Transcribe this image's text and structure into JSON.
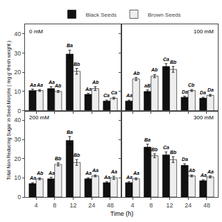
{
  "chart_data": [
    {
      "type": "bar",
      "title": "0 mM",
      "categories": [
        "4",
        "8",
        "12",
        "24",
        "48"
      ],
      "series": [
        {
          "name": "Black Seeds",
          "color": "#111111",
          "values": [
            10.5,
            11.5,
            29.5,
            8.5,
            5.0
          ],
          "errors": [
            0.7,
            1.0,
            2.0,
            0.5,
            0.5
          ],
          "annotations": [
            "Aa",
            "Aa",
            "Ba",
            "Aa",
            "Ca"
          ]
        },
        {
          "name": "Brown Seeds",
          "color": "#eeeeee",
          "values": [
            10.5,
            10.0,
            20.5,
            11.5,
            6.5
          ],
          "errors": [
            0.5,
            0.5,
            1.5,
            1.0,
            0.5
          ],
          "annotations": [
            "Aa",
            "Ab",
            "Bb",
            "Ab",
            "Ca"
          ]
        }
      ],
      "ylim": [
        0,
        45
      ],
      "yticks": [
        0,
        10,
        20,
        30,
        40
      ],
      "grid": false,
      "tick_labels": "y",
      "legend": "top"
    },
    {
      "type": "bar",
      "title": "100 mM",
      "categories": [
        "4",
        "8",
        "12",
        "24",
        "48"
      ],
      "series": [
        {
          "name": "Black Seeds",
          "color": "#111111",
          "values": [
            5.0,
            10.0,
            23.0,
            7.0,
            6.5
          ],
          "errors": [
            0.5,
            0.8,
            1.5,
            0.5,
            0.5
          ],
          "annotations": [
            "Aa",
            "aB",
            "Ca",
            "Da",
            "Da"
          ]
        },
        {
          "name": "Brown Seeds",
          "color": "#eeeeee",
          "values": [
            16.5,
            18.0,
            21.5,
            10.5,
            8.0
          ],
          "errors": [
            0.8,
            0.8,
            1.5,
            0.5,
            0.5
          ],
          "annotations": [
            "Ab",
            "Ab",
            "Bb",
            "Cb",
            "Da"
          ]
        }
      ],
      "ylim": [
        0,
        45
      ],
      "yticks": [
        0,
        10,
        20,
        30,
        40
      ],
      "grid": false,
      "tick_labels": false
    },
    {
      "type": "bar",
      "title": "200 mM",
      "xlabel": "Time (h)",
      "ylabel": "Total Non Reducing Sugar in Seed Morphs ( mg g⁻¹fresh weight )",
      "categories": [
        "4",
        "8",
        "12",
        "24",
        "48"
      ],
      "series": [
        {
          "name": "Black Seeds",
          "color": "#111111",
          "values": [
            7.0,
            9.5,
            29.5,
            9.5,
            7.5
          ],
          "errors": [
            0.5,
            0.8,
            2.0,
            0.5,
            0.5
          ],
          "annotations": [
            "Aa",
            "Aa",
            "Ba",
            "Aa",
            "Aa"
          ]
        },
        {
          "name": "Brown Seeds",
          "color": "#eeeeee",
          "values": [
            9.5,
            17.0,
            18.0,
            11.0,
            10.0
          ],
          "errors": [
            0.5,
            0.8,
            1.5,
            0.5,
            0.8
          ],
          "annotations": [
            "Ab",
            "Bb",
            "Bb",
            "Aa",
            "Aa"
          ]
        }
      ],
      "ylim": [
        0,
        45
      ],
      "yticks": [
        0,
        10,
        20,
        30,
        40
      ],
      "grid": false
    },
    {
      "type": "bar",
      "title": "300 mM",
      "categories": [
        "4",
        "8",
        "12",
        "24",
        "48"
      ],
      "series": [
        {
          "name": "Black Seeds",
          "color": "#111111",
          "values": [
            7.5,
            26.0,
            22.0,
            16.5,
            8.5
          ],
          "errors": [
            0.5,
            1.5,
            1.5,
            0.8,
            0.5
          ],
          "annotations": [
            "Aa",
            "Ba",
            "Ca",
            "Da",
            "Aa"
          ]
        },
        {
          "name": "Brown Seeds",
          "color": "#eeeeee",
          "values": [
            9.5,
            21.5,
            19.5,
            11.0,
            10.5
          ],
          "errors": [
            0.5,
            1.0,
            1.5,
            0.5,
            0.5
          ],
          "annotations": [
            "Aa",
            "Bb",
            "Bb",
            "Ab",
            "Aa"
          ]
        }
      ],
      "ylim": [
        0,
        45
      ],
      "yticks": [
        0,
        10,
        20,
        30,
        40
      ],
      "grid": false,
      "tick_labels": "x"
    }
  ]
}
